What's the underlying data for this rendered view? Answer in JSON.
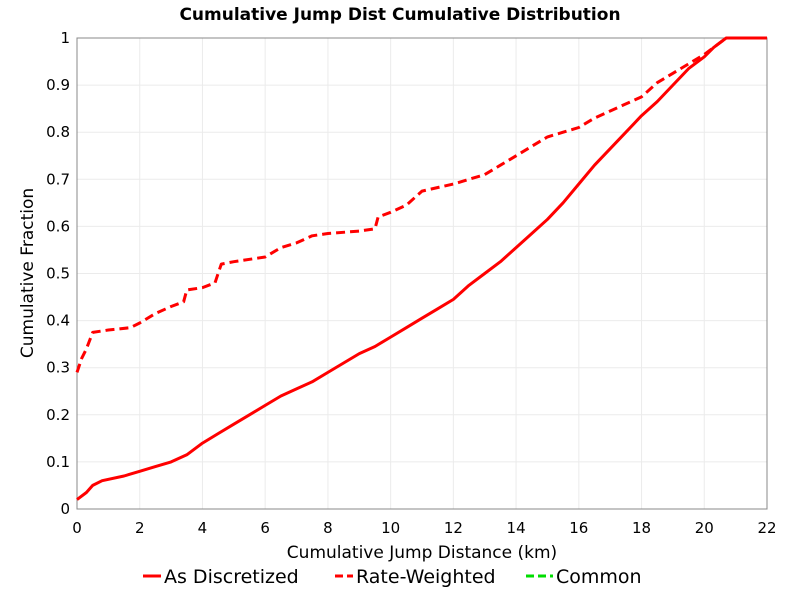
{
  "chart_data": {
    "type": "line",
    "title": "Cumulative Jump Dist Cumulative Distribution",
    "xlabel": "Cumulative Jump Distance (km)",
    "ylabel": "Cumulative Fraction",
    "xlim": [
      0,
      22
    ],
    "ylim": [
      0,
      1
    ],
    "x_ticks": [
      "0",
      "2",
      "4",
      "6",
      "8",
      "10",
      "12",
      "14",
      "16",
      "18",
      "20",
      "22"
    ],
    "y_ticks": [
      "0",
      "0.1",
      "0.2",
      "0.3",
      "0.4",
      "0.5",
      "0.6",
      "0.7",
      "0.8",
      "0.9",
      "1"
    ],
    "grid": true,
    "legend_position": "bottom",
    "series": [
      {
        "name": "As Discretized",
        "color": "#ff0000",
        "dash": "solid",
        "x": [
          0,
          0.3,
          0.5,
          0.8,
          1.5,
          2,
          2.5,
          3,
          3.5,
          4,
          4.5,
          5,
          5.5,
          6,
          6.5,
          7,
          7.5,
          8,
          8.5,
          9,
          9.5,
          10,
          10.5,
          11,
          11.5,
          12,
          12.5,
          13,
          13.5,
          14,
          14.5,
          15,
          15.5,
          16,
          16.5,
          17,
          17.5,
          18,
          18.5,
          19,
          19.5,
          20,
          20.3,
          20.7,
          21,
          22
        ],
        "y": [
          0.02,
          0.035,
          0.05,
          0.06,
          0.07,
          0.08,
          0.09,
          0.1,
          0.115,
          0.14,
          0.16,
          0.18,
          0.2,
          0.22,
          0.24,
          0.255,
          0.27,
          0.29,
          0.31,
          0.33,
          0.345,
          0.365,
          0.385,
          0.405,
          0.425,
          0.445,
          0.475,
          0.5,
          0.525,
          0.555,
          0.585,
          0.615,
          0.65,
          0.69,
          0.73,
          0.765,
          0.8,
          0.835,
          0.865,
          0.9,
          0.935,
          0.96,
          0.98,
          1.0,
          1.0,
          1.0
        ]
      },
      {
        "name": "Rate-Weighted",
        "color": "#ff0000",
        "dash": "dashed",
        "x": [
          0,
          0.15,
          0.3,
          0.5,
          1,
          1.7,
          2,
          2.5,
          3,
          3.4,
          3.5,
          4,
          4.4,
          4.5,
          4.6,
          5,
          6,
          6.5,
          7,
          7.5,
          8,
          9,
          9.5,
          9.6,
          10,
          10.5,
          11,
          12,
          12.5,
          13,
          13.5,
          14,
          14.5,
          15,
          15.5,
          16,
          16.5,
          17,
          17.5,
          18,
          18.5,
          19,
          19.5,
          20,
          20.5,
          20.7,
          22
        ],
        "y": [
          0.29,
          0.32,
          0.34,
          0.375,
          0.38,
          0.385,
          0.395,
          0.415,
          0.43,
          0.44,
          0.465,
          0.47,
          0.48,
          0.5,
          0.52,
          0.525,
          0.535,
          0.555,
          0.565,
          0.58,
          0.585,
          0.59,
          0.595,
          0.62,
          0.63,
          0.645,
          0.675,
          0.69,
          0.7,
          0.71,
          0.73,
          0.75,
          0.77,
          0.79,
          0.8,
          0.81,
          0.83,
          0.845,
          0.86,
          0.875,
          0.905,
          0.925,
          0.945,
          0.965,
          0.99,
          1.0,
          1.0
        ]
      },
      {
        "name": "Common",
        "color": "#00dd00",
        "dash": "dashed",
        "x": [],
        "y": []
      }
    ]
  }
}
